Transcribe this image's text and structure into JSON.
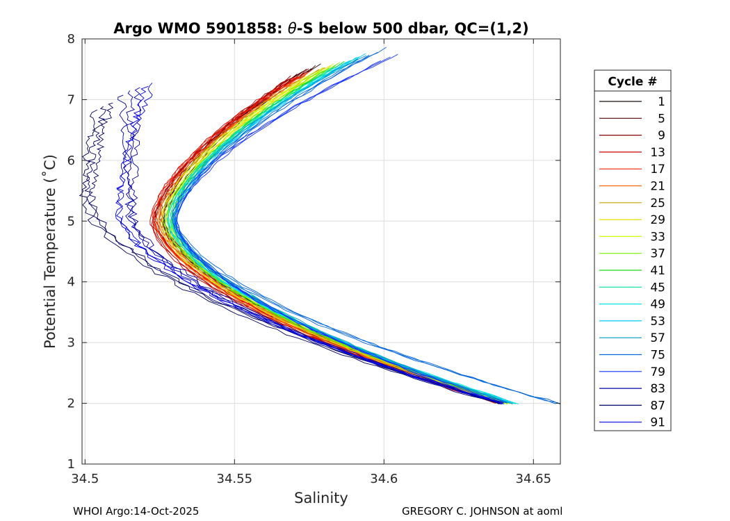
{
  "chart_data": {
    "type": "line",
    "title_prefix": "Argo WMO 5901858: ",
    "title_theta": "θ",
    "title_suffix": "-S below 500 dbar,  QC=(1,2)",
    "xlabel": "Salinity",
    "ylabel": "Potential Temperature (˚C)",
    "xlim": [
      34.499,
      34.659
    ],
    "ylim": [
      1,
      8
    ],
    "xticks": [
      34.5,
      34.55,
      34.6,
      34.65
    ],
    "xtick_labels": [
      "34.5",
      "34.55",
      "34.6",
      "34.65"
    ],
    "yticks": [
      1,
      2,
      3,
      4,
      5,
      6,
      7,
      8
    ],
    "ytick_labels": [
      "1",
      "2",
      "3",
      "4",
      "5",
      "6",
      "7",
      "8"
    ],
    "grid": true,
    "legend_title": "Cycle #",
    "legend_position": "outside-right",
    "series": [
      {
        "name": "1",
        "color": "#1e0a0a",
        "s_bottom": 34.64,
        "s_min": 34.527,
        "t_min": 5.05,
        "s_top": 34.579,
        "t_top": 7.58
      },
      {
        "name": "5",
        "color": "#550000",
        "s_bottom": 34.641,
        "s_min": 34.525,
        "t_min": 5.1,
        "s_top": 34.577,
        "t_top": 7.55
      },
      {
        "name": "9",
        "color": "#8c0000",
        "s_bottom": 34.64,
        "s_min": 34.524,
        "t_min": 5.0,
        "s_top": 34.575,
        "t_top": 7.5
      },
      {
        "name": "13",
        "color": "#c80000",
        "s_bottom": 34.639,
        "s_min": 34.523,
        "t_min": 5.0,
        "s_top": 34.574,
        "t_top": 7.45
      },
      {
        "name": "17",
        "color": "#ff1e00",
        "s_bottom": 34.64,
        "s_min": 34.524,
        "t_min": 5.05,
        "s_top": 34.576,
        "t_top": 7.48
      },
      {
        "name": "21",
        "color": "#ff6400",
        "s_bottom": 34.641,
        "s_min": 34.525,
        "t_min": 5.0,
        "s_top": 34.578,
        "t_top": 7.5
      },
      {
        "name": "25",
        "color": "#c8a000",
        "s_bottom": 34.641,
        "s_min": 34.526,
        "t_min": 5.05,
        "s_top": 34.58,
        "t_top": 7.52
      },
      {
        "name": "29",
        "color": "#e6dc00",
        "s_bottom": 34.642,
        "s_min": 34.527,
        "t_min": 5.0,
        "s_top": 34.582,
        "t_top": 7.55
      },
      {
        "name": "33",
        "color": "#c8ff00",
        "s_bottom": 34.642,
        "s_min": 34.527,
        "t_min": 5.05,
        "s_top": 34.583,
        "t_top": 7.58
      },
      {
        "name": "37",
        "color": "#78f000",
        "s_bottom": 34.643,
        "s_min": 34.528,
        "t_min": 5.0,
        "s_top": 34.585,
        "t_top": 7.6
      },
      {
        "name": "41",
        "color": "#1edc14",
        "s_bottom": 34.643,
        "s_min": 34.528,
        "t_min": 5.05,
        "s_top": 34.587,
        "t_top": 7.62
      },
      {
        "name": "45",
        "color": "#00dca0",
        "s_bottom": 34.644,
        "s_min": 34.529,
        "t_min": 5.0,
        "s_top": 34.589,
        "t_top": 7.65
      },
      {
        "name": "49",
        "color": "#00e6e6",
        "s_bottom": 34.645,
        "s_min": 34.529,
        "t_min": 5.05,
        "s_top": 34.592,
        "t_top": 7.7
      },
      {
        "name": "53",
        "color": "#00c8ff",
        "s_bottom": 34.644,
        "s_min": 34.53,
        "t_min": 5.0,
        "s_top": 34.594,
        "t_top": 7.75
      },
      {
        "name": "57",
        "color": "#0096c8",
        "s_bottom": 34.643,
        "s_min": 34.531,
        "t_min": 5.05,
        "s_top": 34.597,
        "t_top": 7.8
      },
      {
        "name": "75",
        "color": "#0064dc",
        "s_bottom": 34.659,
        "s_min": 34.531,
        "t_min": 5.0,
        "s_top": 34.601,
        "t_top": 7.85
      },
      {
        "name": "79",
        "color": "#1432ff",
        "s_bottom": 34.641,
        "s_min": 34.53,
        "t_min": 5.05,
        "s_top": 34.605,
        "t_top": 7.75
      },
      {
        "name": "83",
        "color": "#0000aa",
        "s_bottom": 34.64,
        "s_min": 34.515,
        "t_min": 5.1,
        "s_top": 34.518,
        "t_top": 7.2
      },
      {
        "name": "87",
        "color": "#000064",
        "s_bottom": 34.639,
        "s_min": 34.501,
        "t_min": 5.4,
        "s_top": 34.509,
        "t_top": 6.95
      },
      {
        "name": "91",
        "color": "#0000e6",
        "s_bottom": 34.64,
        "s_min": 34.512,
        "t_min": 5.2,
        "s_top": 34.526,
        "t_top": 7.35
      }
    ]
  },
  "footer": {
    "left": "WHOI Argo:14-Oct-2025",
    "right": "GREGORY C. JOHNSON at aoml"
  }
}
